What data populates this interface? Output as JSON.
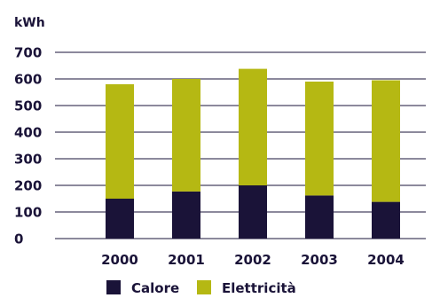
{
  "chart_data": {
    "type": "bar",
    "stacked": true,
    "ylabel": "kWh",
    "ylim": [
      0,
      700
    ],
    "yticks": [
      0,
      100,
      200,
      300,
      400,
      500,
      600,
      700
    ],
    "grid": true,
    "legend_position": "bottom",
    "categories": [
      "2000",
      "2001",
      "2002",
      "2003",
      "2004"
    ],
    "series": [
      {
        "name": "Calore",
        "values": [
          150,
          177,
          200,
          162,
          138
        ],
        "color": "#1a1338"
      },
      {
        "name": "Elettricità",
        "values": [
          430,
          423,
          438,
          428,
          457
        ],
        "color": "#b5b813"
      }
    ]
  }
}
